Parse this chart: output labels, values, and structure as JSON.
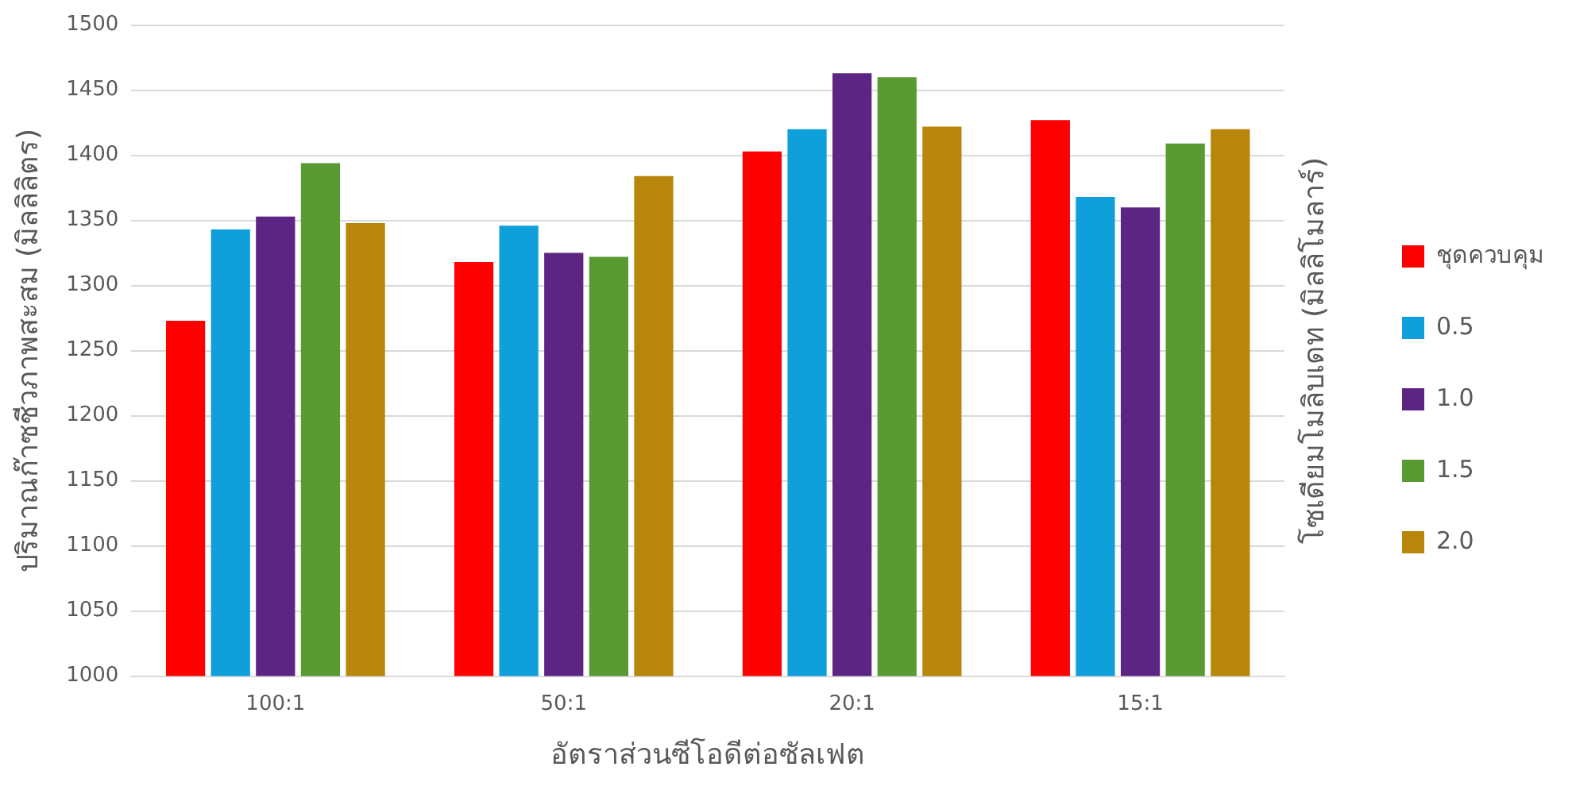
{
  "chart_data": {
    "type": "bar",
    "xlabel": "อัตราส่วนซีโอดีต่อซัลเฟต",
    "ylabel": "ปริมาณก๊าซชีวภาพสะสม (มิลลิลิตร)",
    "legend_title": "โซเดียมโมลิบเดท (มิลลิโมลาร์)",
    "categories": [
      "100:1",
      "50:1",
      "20:1",
      "15:1"
    ],
    "series": [
      {
        "name": "ชุดควบคุม",
        "color": "#ff0000",
        "values": [
          1273,
          1318,
          1403,
          1427
        ]
      },
      {
        "name": "0.5",
        "color": "#0fa0dc",
        "values": [
          1343,
          1346,
          1420,
          1368
        ]
      },
      {
        "name": "1.0",
        "color": "#5c2483",
        "values": [
          1353,
          1325,
          1463,
          1360
        ]
      },
      {
        "name": "1.5",
        "color": "#5a9a32",
        "values": [
          1394,
          1322,
          1460,
          1409
        ]
      },
      {
        "name": "2.0",
        "color": "#b8860b",
        "values": [
          1348,
          1384,
          1422,
          1420
        ]
      }
    ],
    "ylim": [
      1000,
      1500
    ],
    "yticks": [
      1000,
      1050,
      1100,
      1150,
      1200,
      1250,
      1300,
      1350,
      1400,
      1450,
      1500
    ],
    "grid": "y",
    "legend": "right"
  }
}
